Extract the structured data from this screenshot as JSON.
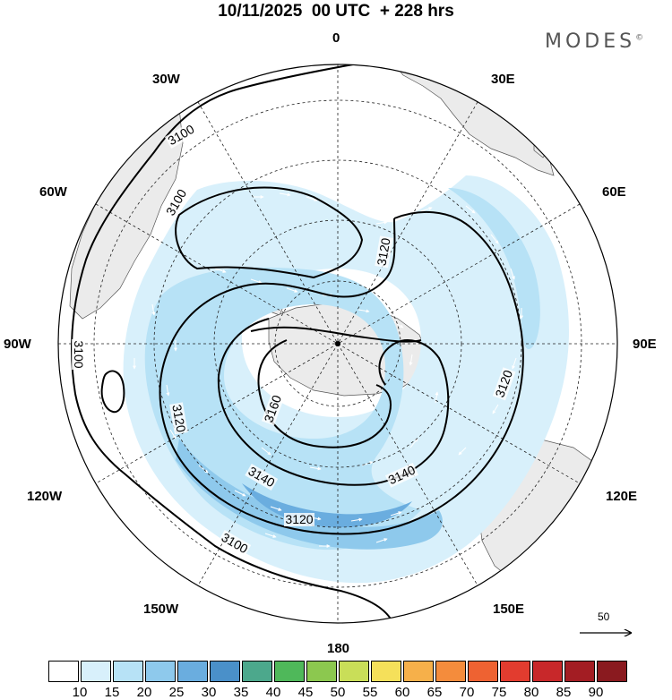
{
  "title": "10/11/2025  00 UTC  + 228 hrs",
  "brand": "MODES",
  "brand_mark": "©",
  "longitude_labels": {
    "lon_0": "0",
    "lon_30e": "30E",
    "lon_60e": "60E",
    "lon_90e": "90E",
    "lon_120e": "120E",
    "lon_150e": "150E",
    "lon_180": "180",
    "lon_150w": "150W",
    "lon_120w": "120W",
    "lon_90w": "90W",
    "lon_60w": "60W",
    "lon_30w": "30W"
  },
  "contour_labels": [
    "3100",
    "3120",
    "3140",
    "3160"
  ],
  "contour_label_marks": [
    {
      "text": "3100",
      "id": "west-3100"
    },
    {
      "text": "3100",
      "id": "nw-3100"
    },
    {
      "text": "3100",
      "id": "north-3100"
    },
    {
      "text": "3100",
      "id": "south-3100"
    },
    {
      "text": "3120",
      "id": "northeast-3120"
    },
    {
      "text": "3120",
      "id": "east-3120"
    },
    {
      "text": "3120",
      "id": "west-3120"
    },
    {
      "text": "3120",
      "id": "south-3120"
    },
    {
      "text": "3140",
      "id": "sw-3140"
    },
    {
      "text": "3140",
      "id": "se-3140"
    },
    {
      "text": "3160",
      "id": "inner-3160"
    }
  ],
  "wind_reference": {
    "value": "50"
  },
  "colorbar": {
    "ticks": [
      "10",
      "15",
      "20",
      "25",
      "30",
      "35",
      "40",
      "45",
      "50",
      "55",
      "60",
      "65",
      "70",
      "75",
      "80",
      "85",
      "90"
    ],
    "colors": [
      "#ffffff",
      "#d8f0fb",
      "#b7e2f6",
      "#8ec9ec",
      "#6aaddf",
      "#4a90c9",
      "#4ca88c",
      "#4fb85a",
      "#8cc84f",
      "#c9de58",
      "#f5e05a",
      "#f6b04a",
      "#f48c3c",
      "#ee6232",
      "#e23c2f",
      "#c8282a",
      "#a31d23",
      "#8a1a1f"
    ]
  },
  "colors": {
    "land": "#ebebeb",
    "shade_light": "#d8f0fb",
    "shade_mid": "#b7e2f6",
    "shade_strong": "#8ec9ec",
    "shade_max": "#6aaddf"
  }
}
